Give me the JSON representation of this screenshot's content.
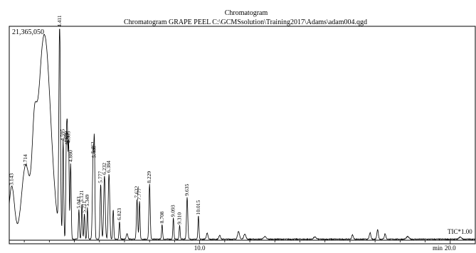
{
  "chart_data": {
    "type": "line",
    "title": "Chromatogram",
    "subtitle": "Chromatogram GRAPE PEEL  C:\\GCMSsolution\\Training2017\\Adams\\adam004.qgd",
    "y_max_label": "21,365,050",
    "x_unit": "min",
    "series_label": "TIC*1.00",
    "xlim": [
      2.4,
      21.0
    ],
    "ylim": [
      0,
      21365050
    ],
    "x_ticks": [
      {
        "value": 10.0,
        "label": "10.0"
      },
      {
        "value": 20.0,
        "label": "20.0"
      }
    ],
    "peaks": [
      {
        "rt": 2.5,
        "label": "3.143",
        "h": 0.25,
        "w": 0.11
      },
      {
        "rt": 3.05,
        "label": "3.714",
        "h": 0.34,
        "w": 0.16
      },
      {
        "rt": 3.4,
        "label": "",
        "h": 0.32,
        "w": 0.09
      },
      {
        "rt": 3.8,
        "label": "",
        "h": 0.97,
        "w": 0.25
      },
      {
        "rt": 4.411,
        "label": "4.411",
        "h": 1.0,
        "w": 0.03
      },
      {
        "rt": 4.55,
        "label": "4.595",
        "h": 0.46,
        "w": 0.022
      },
      {
        "rt": 4.68,
        "label": "4.690",
        "h": 0.45,
        "w": 0.022
      },
      {
        "rt": 4.72,
        "label": "4.765",
        "h": 0.44,
        "w": 0.02
      },
      {
        "rt": 4.77,
        "label": "4.805",
        "h": 0.45,
        "w": 0.02
      },
      {
        "rt": 4.85,
        "label": "4.880",
        "h": 0.36,
        "w": 0.022
      },
      {
        "rt": 5.18,
        "label": "5.043",
        "h": 0.14,
        "w": 0.02
      },
      {
        "rt": 5.3,
        "label": "5.121",
        "h": 0.17,
        "w": 0.02
      },
      {
        "rt": 5.4,
        "label": "5.211",
        "h": 0.12,
        "w": 0.02
      },
      {
        "rt": 5.52,
        "label": "5.349",
        "h": 0.15,
        "w": 0.02
      },
      {
        "rt": 5.75,
        "label": "5.462",
        "h": 0.4,
        "w": 0.03
      },
      {
        "rt": 5.8,
        "label": "5.488",
        "h": 0.38,
        "w": 0.02
      },
      {
        "rt": 6.05,
        "label": "5.777",
        "h": 0.26,
        "w": 0.025
      },
      {
        "rt": 6.2,
        "label": "6.232",
        "h": 0.3,
        "w": 0.03
      },
      {
        "rt": 6.38,
        "label": "6.384",
        "h": 0.31,
        "w": 0.03
      },
      {
        "rt": 6.55,
        "label": "",
        "h": 0.14,
        "w": 0.02
      },
      {
        "rt": 6.8,
        "label": "6.823",
        "h": 0.085,
        "w": 0.02
      },
      {
        "rt": 7.1,
        "label": "",
        "h": 0.025,
        "w": 0.03
      },
      {
        "rt": 7.5,
        "label": "7.622",
        "h": 0.19,
        "w": 0.025
      },
      {
        "rt": 7.6,
        "label": "7.777",
        "h": 0.18,
        "w": 0.02
      },
      {
        "rt": 8.0,
        "label": "8.229",
        "h": 0.26,
        "w": 0.025
      },
      {
        "rt": 8.5,
        "label": "8.708",
        "h": 0.07,
        "w": 0.02
      },
      {
        "rt": 8.95,
        "label": "9.093",
        "h": 0.1,
        "w": 0.02
      },
      {
        "rt": 9.2,
        "label": "9.310",
        "h": 0.065,
        "w": 0.02
      },
      {
        "rt": 9.5,
        "label": "9.635",
        "h": 0.2,
        "w": 0.025
      },
      {
        "rt": 9.95,
        "label": "10.015",
        "h": 0.11,
        "w": 0.02
      },
      {
        "rt": 10.3,
        "label": "",
        "h": 0.03,
        "w": 0.03
      },
      {
        "rt": 10.8,
        "label": "",
        "h": 0.02,
        "w": 0.03
      },
      {
        "rt": 11.55,
        "label": "",
        "h": 0.035,
        "w": 0.04
      },
      {
        "rt": 11.8,
        "label": "",
        "h": 0.025,
        "w": 0.04
      },
      {
        "rt": 12.6,
        "label": "",
        "h": 0.012,
        "w": 0.05
      },
      {
        "rt": 14.6,
        "label": "",
        "h": 0.01,
        "w": 0.05
      },
      {
        "rt": 16.1,
        "label": "",
        "h": 0.02,
        "w": 0.03
      },
      {
        "rt": 16.8,
        "label": "",
        "h": 0.03,
        "w": 0.03
      },
      {
        "rt": 17.1,
        "label": "",
        "h": 0.045,
        "w": 0.03
      },
      {
        "rt": 17.4,
        "label": "",
        "h": 0.025,
        "w": 0.03
      },
      {
        "rt": 18.3,
        "label": "",
        "h": 0.012,
        "w": 0.05
      },
      {
        "rt": 20.4,
        "label": "",
        "h": 0.01,
        "w": 0.05
      }
    ]
  }
}
